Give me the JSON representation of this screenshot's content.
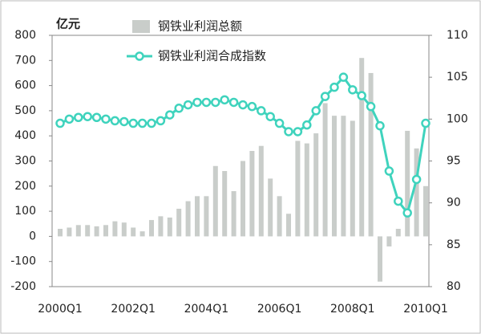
{
  "chart_data": {
    "type": "bar_line",
    "y_label": "亿元",
    "categories": [
      "2000Q1",
      null,
      null,
      null,
      null,
      null,
      null,
      null,
      "2002Q1",
      null,
      null,
      null,
      null,
      null,
      null,
      null,
      "2004Q1",
      null,
      null,
      null,
      null,
      null,
      null,
      null,
      "2006Q1",
      null,
      null,
      null,
      null,
      null,
      null,
      null,
      "2008Q1",
      null,
      null,
      null,
      null,
      null,
      null,
      null,
      "2010Q1"
    ],
    "series": [
      {
        "name": "钢铁业利润总额",
        "type": "bar",
        "color": "#c9cdca",
        "values": [
          30,
          35,
          45,
          45,
          40,
          45,
          60,
          55,
          35,
          20,
          65,
          80,
          75,
          110,
          140,
          160,
          160,
          280,
          260,
          180,
          300,
          340,
          360,
          230,
          160,
          90,
          380,
          370,
          410,
          530,
          480,
          480,
          460,
          710,
          650,
          -180,
          -40,
          30,
          420,
          350,
          200
        ]
      },
      {
        "name": "钢铁业利润合成指数",
        "type": "line",
        "axis": "y2",
        "color": "#3fd3bd",
        "values": [
          99.5,
          100,
          100.2,
          100.3,
          100.2,
          100,
          99.8,
          99.7,
          99.5,
          99.5,
          99.5,
          99.8,
          100.5,
          101.3,
          101.7,
          102,
          102,
          102,
          102.3,
          102,
          101.7,
          101.5,
          101,
          100.3,
          99.5,
          98.5,
          98.5,
          99.3,
          101,
          102.7,
          103.8,
          105,
          103.5,
          102.8,
          101.5,
          99.2,
          93.8,
          90.2,
          88.8,
          92.8,
          99.5
        ]
      }
    ],
    "ylim": [
      -200,
      800
    ],
    "yticks": [
      -200,
      -100,
      0,
      100,
      200,
      300,
      400,
      500,
      600,
      700,
      800
    ],
    "y2lim": [
      80,
      110
    ],
    "y2ticks": [
      80,
      85,
      90,
      95,
      100,
      105,
      110
    ],
    "grid": false
  }
}
